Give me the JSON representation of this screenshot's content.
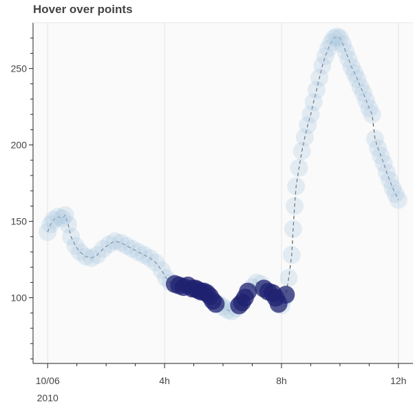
{
  "chart_data": {
    "type": "scatter",
    "title": "Hover over points",
    "xlabel": "",
    "ylabel": "",
    "x_unit": "hours since 10/06 2010 00:00",
    "xlim": [
      -0.5,
      12.5
    ],
    "ylim": [
      57,
      280
    ],
    "x_ticks": [
      {
        "value": 0,
        "label": "10/06",
        "sublabel": "2010"
      },
      {
        "value": 4,
        "label": "4h",
        "sublabel": ""
      },
      {
        "value": 8,
        "label": "8h",
        "sublabel": ""
      },
      {
        "value": 12,
        "label": "12h",
        "sublabel": ""
      }
    ],
    "y_ticks": [
      100,
      150,
      200,
      250
    ],
    "grid": {
      "x": true,
      "y": false
    },
    "series": [
      {
        "name": "",
        "marker": "circle",
        "line": "dashed",
        "color_light": "#a6c4e0",
        "color_dark": "#1f2170",
        "points": [
          {
            "x": 0.0,
            "y": 143,
            "hover": false
          },
          {
            "x": 0.1,
            "y": 148,
            "hover": false
          },
          {
            "x": 0.2,
            "y": 151,
            "hover": false
          },
          {
            "x": 0.35,
            "y": 153,
            "hover": false
          },
          {
            "x": 0.5,
            "y": 152,
            "hover": false
          },
          {
            "x": 0.6,
            "y": 154,
            "hover": false
          },
          {
            "x": 0.7,
            "y": 148,
            "hover": false
          },
          {
            "x": 0.8,
            "y": 140,
            "hover": false
          },
          {
            "x": 0.95,
            "y": 134,
            "hover": false
          },
          {
            "x": 1.1,
            "y": 130,
            "hover": false
          },
          {
            "x": 1.3,
            "y": 127,
            "hover": false
          },
          {
            "x": 1.5,
            "y": 126,
            "hover": false
          },
          {
            "x": 1.7,
            "y": 128,
            "hover": false
          },
          {
            "x": 1.9,
            "y": 132,
            "hover": false
          },
          {
            "x": 2.1,
            "y": 135,
            "hover": false
          },
          {
            "x": 2.3,
            "y": 137,
            "hover": false
          },
          {
            "x": 2.5,
            "y": 136,
            "hover": false
          },
          {
            "x": 2.7,
            "y": 134,
            "hover": false
          },
          {
            "x": 2.9,
            "y": 132,
            "hover": false
          },
          {
            "x": 3.1,
            "y": 130,
            "hover": false
          },
          {
            "x": 3.3,
            "y": 128,
            "hover": false
          },
          {
            "x": 3.5,
            "y": 126,
            "hover": false
          },
          {
            "x": 3.7,
            "y": 123,
            "hover": false
          },
          {
            "x": 3.9,
            "y": 118,
            "hover": false
          },
          {
            "x": 4.05,
            "y": 113,
            "hover": false
          },
          {
            "x": 4.2,
            "y": 110,
            "hover": false
          },
          {
            "x": 4.35,
            "y": 109,
            "hover": true
          },
          {
            "x": 4.5,
            "y": 108,
            "hover": true
          },
          {
            "x": 4.65,
            "y": 107,
            "hover": true
          },
          {
            "x": 4.8,
            "y": 108,
            "hover": true
          },
          {
            "x": 4.95,
            "y": 106,
            "hover": true
          },
          {
            "x": 5.05,
            "y": 106,
            "hover": true
          },
          {
            "x": 5.15,
            "y": 105,
            "hover": true
          },
          {
            "x": 5.25,
            "y": 104,
            "hover": true
          },
          {
            "x": 5.35,
            "y": 104,
            "hover": true
          },
          {
            "x": 5.45,
            "y": 103,
            "hover": true
          },
          {
            "x": 5.55,
            "y": 101,
            "hover": true
          },
          {
            "x": 5.65,
            "y": 98,
            "hover": true
          },
          {
            "x": 5.75,
            "y": 96,
            "hover": true
          },
          {
            "x": 5.85,
            "y": 96,
            "hover": false
          },
          {
            "x": 6.0,
            "y": 94,
            "hover": false
          },
          {
            "x": 6.15,
            "y": 92,
            "hover": false
          },
          {
            "x": 6.3,
            "y": 91,
            "hover": false
          },
          {
            "x": 6.45,
            "y": 93,
            "hover": false
          },
          {
            "x": 6.55,
            "y": 95,
            "hover": true
          },
          {
            "x": 6.65,
            "y": 97,
            "hover": true
          },
          {
            "x": 6.75,
            "y": 100,
            "hover": true
          },
          {
            "x": 6.85,
            "y": 104,
            "hover": true
          },
          {
            "x": 7.0,
            "y": 107,
            "hover": false
          },
          {
            "x": 7.15,
            "y": 110,
            "hover": false
          },
          {
            "x": 7.3,
            "y": 109,
            "hover": false
          },
          {
            "x": 7.4,
            "y": 106,
            "hover": true
          },
          {
            "x": 7.55,
            "y": 104,
            "hover": true
          },
          {
            "x": 7.7,
            "y": 103,
            "hover": true
          },
          {
            "x": 7.8,
            "y": 100,
            "hover": true
          },
          {
            "x": 7.9,
            "y": 96,
            "hover": true
          },
          {
            "x": 8.0,
            "y": 95,
            "hover": false
          },
          {
            "x": 8.1,
            "y": 100,
            "hover": false
          },
          {
            "x": 8.15,
            "y": 102,
            "hover": true
          },
          {
            "x": 8.25,
            "y": 113,
            "hover": false
          },
          {
            "x": 8.35,
            "y": 128,
            "hover": false
          },
          {
            "x": 8.4,
            "y": 145,
            "hover": false
          },
          {
            "x": 8.45,
            "y": 160,
            "hover": false
          },
          {
            "x": 8.5,
            "y": 173,
            "hover": false
          },
          {
            "x": 8.6,
            "y": 185,
            "hover": false
          },
          {
            "x": 8.7,
            "y": 196,
            "hover": false
          },
          {
            "x": 8.8,
            "y": 205,
            "hover": false
          },
          {
            "x": 8.9,
            "y": 213,
            "hover": false
          },
          {
            "x": 9.0,
            "y": 220,
            "hover": false
          },
          {
            "x": 9.1,
            "y": 228,
            "hover": false
          },
          {
            "x": 9.2,
            "y": 236,
            "hover": false
          },
          {
            "x": 9.3,
            "y": 244,
            "hover": false
          },
          {
            "x": 9.4,
            "y": 252,
            "hover": false
          },
          {
            "x": 9.5,
            "y": 258,
            "hover": false
          },
          {
            "x": 9.6,
            "y": 263,
            "hover": false
          },
          {
            "x": 9.7,
            "y": 267,
            "hover": false
          },
          {
            "x": 9.8,
            "y": 270,
            "hover": false
          },
          {
            "x": 9.9,
            "y": 271,
            "hover": false
          },
          {
            "x": 10.0,
            "y": 270,
            "hover": false
          },
          {
            "x": 10.1,
            "y": 266,
            "hover": false
          },
          {
            "x": 10.2,
            "y": 261,
            "hover": false
          },
          {
            "x": 10.3,
            "y": 256,
            "hover": false
          },
          {
            "x": 10.4,
            "y": 251,
            "hover": false
          },
          {
            "x": 10.5,
            "y": 247,
            "hover": false
          },
          {
            "x": 10.6,
            "y": 243,
            "hover": false
          },
          {
            "x": 10.7,
            "y": 238,
            "hover": false
          },
          {
            "x": 10.8,
            "y": 234,
            "hover": false
          },
          {
            "x": 10.9,
            "y": 229,
            "hover": false
          },
          {
            "x": 11.0,
            "y": 224,
            "hover": false
          },
          {
            "x": 11.1,
            "y": 220,
            "hover": false
          },
          {
            "x": 11.2,
            "y": 204,
            "hover": false
          },
          {
            "x": 11.3,
            "y": 198,
            "hover": false
          },
          {
            "x": 11.4,
            "y": 193,
            "hover": false
          },
          {
            "x": 11.5,
            "y": 188,
            "hover": false
          },
          {
            "x": 11.6,
            "y": 182,
            "hover": false
          },
          {
            "x": 11.7,
            "y": 177,
            "hover": false
          },
          {
            "x": 11.8,
            "y": 172,
            "hover": false
          },
          {
            "x": 11.9,
            "y": 168,
            "hover": false
          },
          {
            "x": 12.0,
            "y": 164,
            "hover": false
          }
        ]
      }
    ]
  }
}
